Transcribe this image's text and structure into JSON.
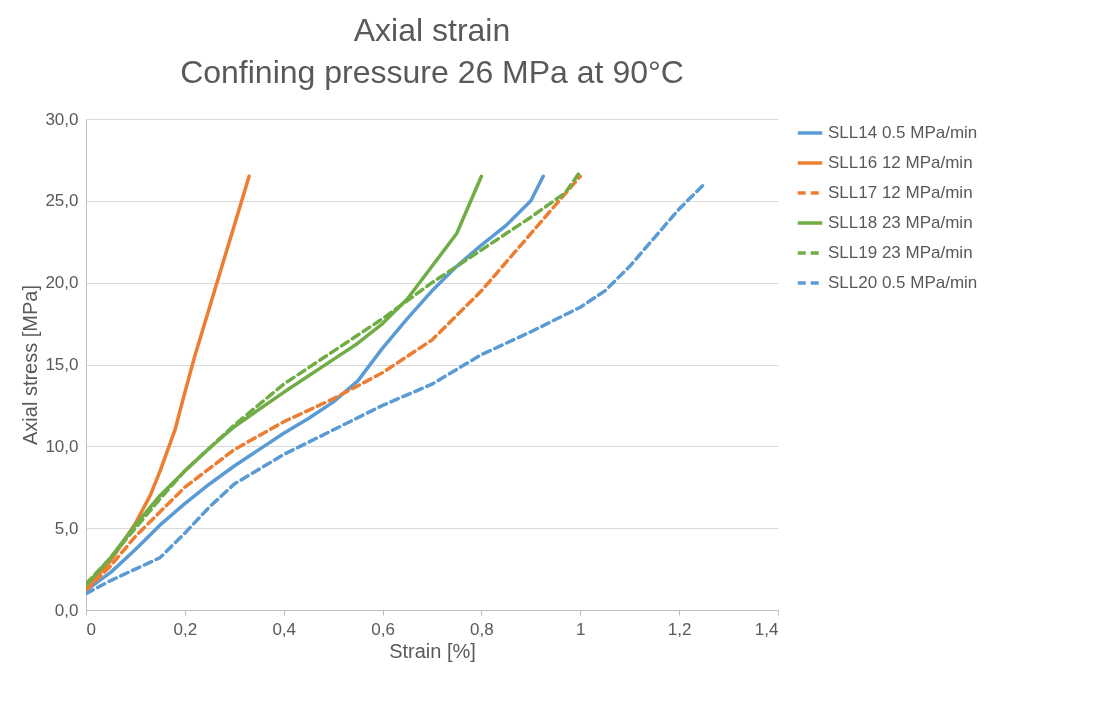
{
  "chart_data": {
    "type": "line",
    "title": "Axial strain",
    "subtitle": "Confining pressure 26 MPa at 90°C",
    "xlabel": "Strain [%]",
    "ylabel": "Axial stress [MPa]",
    "xlim": [
      0,
      1.4
    ],
    "xticks": [
      0,
      {
        "value": 0.2,
        "label": "0,2"
      },
      {
        "value": 0.4,
        "label": "0,4"
      },
      {
        "value": 0.6,
        "label": "0,6"
      },
      {
        "value": 0.8,
        "label": "0,8"
      },
      1,
      {
        "value": 1.2,
        "label": "1,2"
      },
      {
        "value": 1.4,
        "label": "1,4"
      }
    ],
    "ylim": [
      0,
      30
    ],
    "yticks": [
      {
        "value": 0,
        "label": "0,0"
      },
      {
        "value": 5,
        "label": "5,0"
      },
      {
        "value": 10,
        "label": "10,0"
      },
      {
        "value": 15,
        "label": "15,0"
      },
      {
        "value": 20,
        "label": "20,0"
      },
      {
        "value": 25,
        "label": "25,0"
      },
      {
        "value": 30,
        "label": "30,0"
      }
    ],
    "grid": "y",
    "legend": "right",
    "marker": "none",
    "series": [
      {
        "name": "SLL14 0.5 MPa/min",
        "color": "#5b9bd5",
        "line_style": "solid",
        "x": [
          0,
          0.05,
          0.1,
          0.15,
          0.2,
          0.25,
          0.3,
          0.35,
          0.4,
          0.45,
          0.5,
          0.55,
          0.6,
          0.65,
          0.7,
          0.75,
          0.8,
          0.85,
          0.9,
          0.925
        ],
        "values": [
          1.2,
          2.3,
          3.7,
          5.2,
          6.5,
          7.7,
          8.8,
          9.8,
          10.8,
          11.7,
          12.7,
          14.0,
          16.0,
          17.8,
          19.5,
          21.0,
          22.3,
          23.5,
          25.0,
          26.5
        ]
      },
      {
        "name": "SLL16 12 MPa/min",
        "color": "#ed7d31",
        "line_style": "solid",
        "x": [
          0,
          0.05,
          0.1,
          0.13,
          0.15,
          0.18,
          0.2,
          0.22,
          0.25,
          0.27,
          0.3,
          0.33
        ],
        "values": [
          1.3,
          3.0,
          5.3,
          7.0,
          8.5,
          11.0,
          13.3,
          15.5,
          18.5,
          20.5,
          23.5,
          26.5
        ]
      },
      {
        "name": "SLL17 12 MPa/min",
        "color": "#ed7d31",
        "line_style": "dashed",
        "x": [
          0,
          0.05,
          0.1,
          0.15,
          0.2,
          0.3,
          0.4,
          0.5,
          0.6,
          0.7,
          0.8,
          0.9,
          1.0
        ],
        "values": [
          1.2,
          2.7,
          4.5,
          6.0,
          7.5,
          9.8,
          11.5,
          12.9,
          14.5,
          16.5,
          19.5,
          23.0,
          26.5
        ]
      },
      {
        "name": "SLL18 23 MPa/min",
        "color": "#70ad47",
        "line_style": "solid",
        "x": [
          0,
          0.05,
          0.1,
          0.15,
          0.2,
          0.25,
          0.3,
          0.4,
          0.5,
          0.55,
          0.6,
          0.65,
          0.7,
          0.75,
          0.8
        ],
        "values": [
          1.5,
          3.2,
          5.2,
          7.0,
          8.5,
          9.9,
          11.2,
          13.3,
          15.3,
          16.3,
          17.5,
          19.0,
          21.0,
          23.0,
          26.5
        ]
      },
      {
        "name": "SLL19 23 MPa/min",
        "color": "#70ad47",
        "line_style": "dashed",
        "x": [
          0,
          0.05,
          0.1,
          0.15,
          0.2,
          0.3,
          0.4,
          0.5,
          0.6,
          0.7,
          0.8,
          0.9,
          0.97,
          1.0
        ],
        "values": [
          1.6,
          3.2,
          5.0,
          6.8,
          8.5,
          11.3,
          13.8,
          15.8,
          17.8,
          20.0,
          22.0,
          24.0,
          25.5,
          26.8
        ]
      },
      {
        "name": "SLL20 0.5 MPa/min",
        "color": "#5b9bd5",
        "line_style": "dashed",
        "x": [
          0,
          0.05,
          0.1,
          0.15,
          0.2,
          0.25,
          0.3,
          0.4,
          0.5,
          0.6,
          0.7,
          0.8,
          0.9,
          1.0,
          1.05,
          1.1,
          1.2,
          1.25
        ],
        "values": [
          1.0,
          1.8,
          2.5,
          3.2,
          4.7,
          6.3,
          7.7,
          9.5,
          11.0,
          12.5,
          13.8,
          15.6,
          17.0,
          18.5,
          19.5,
          21.0,
          24.5,
          26.0
        ]
      }
    ]
  }
}
